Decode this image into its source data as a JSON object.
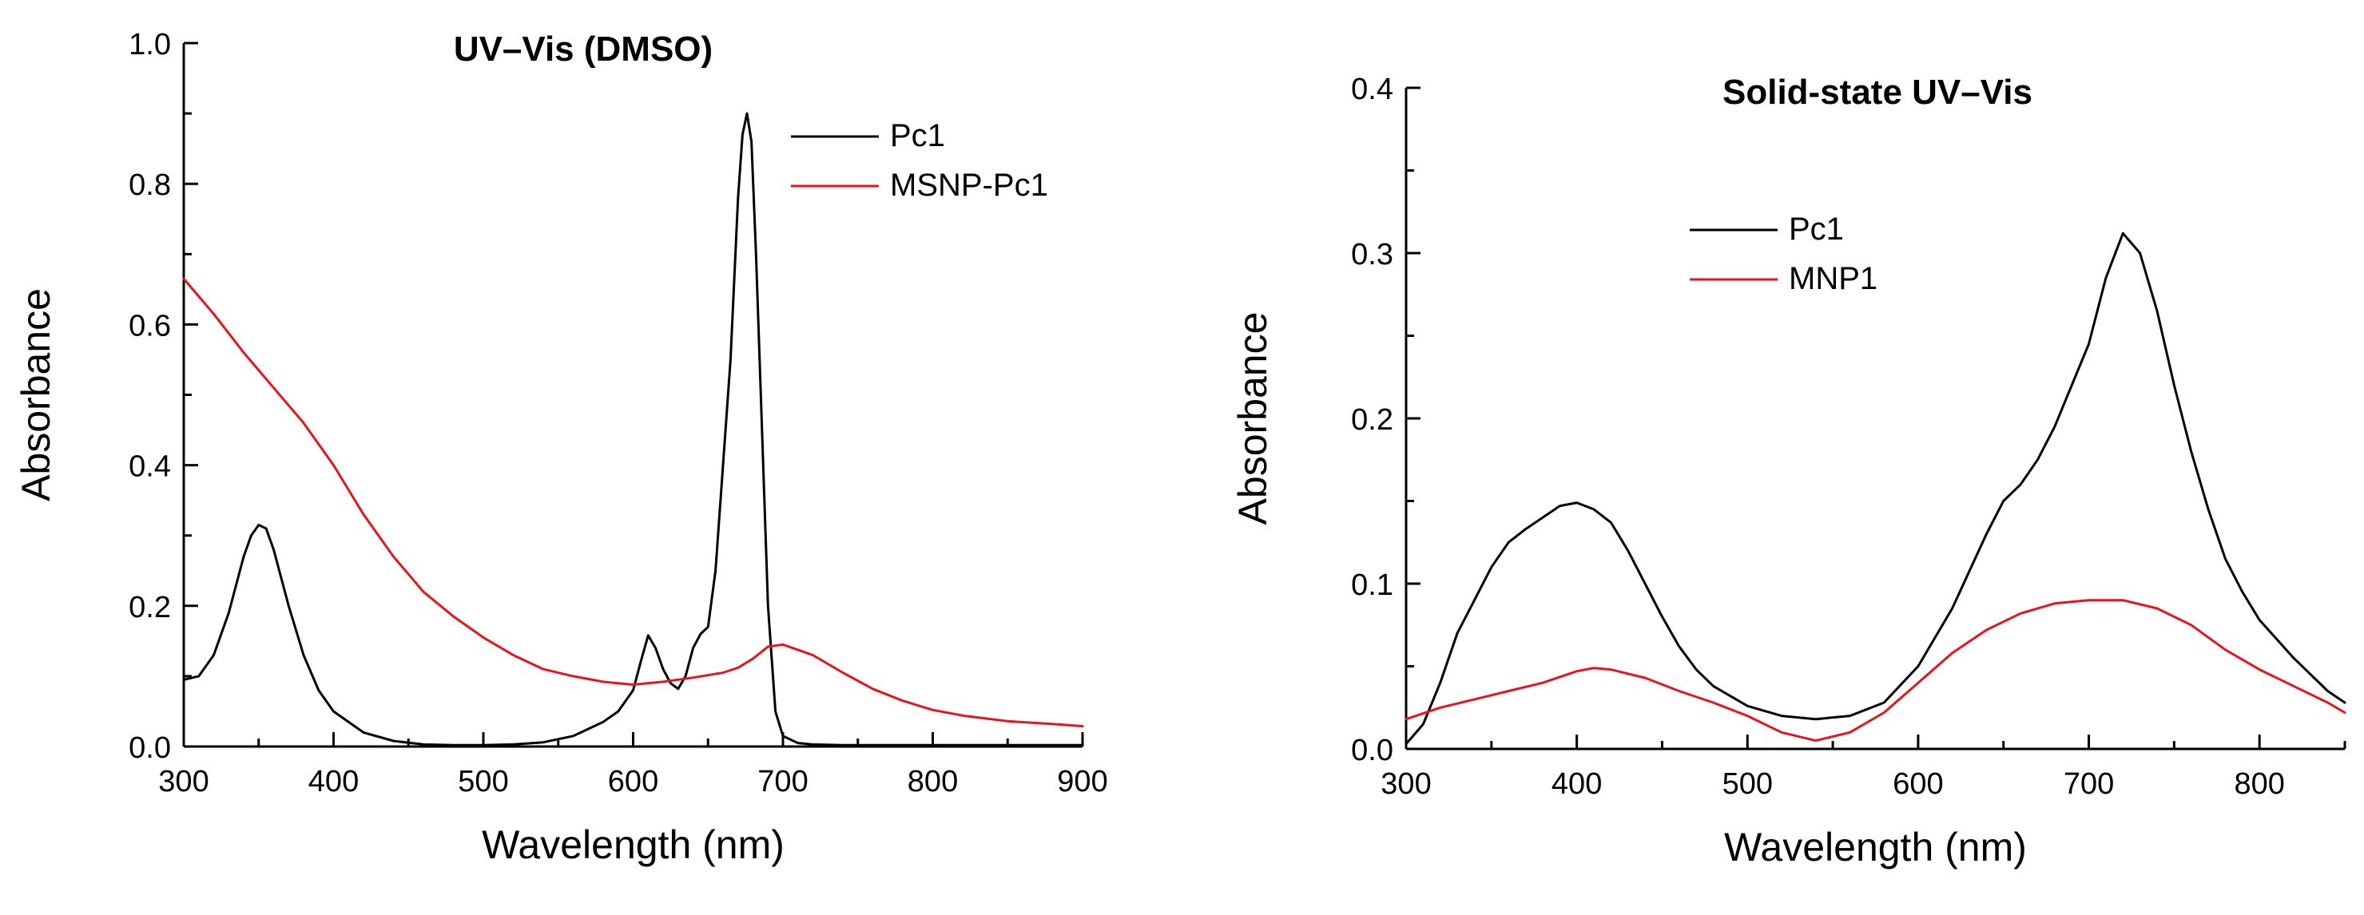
{
  "chart_data": [
    {
      "type": "line",
      "title": "UV–Vis (DMSO)",
      "xlabel": "Wavelength (nm)",
      "ylabel": "Absorbance",
      "xlim": [
        300,
        900
      ],
      "ylim": [
        0.0,
        1.0
      ],
      "xticks": [
        "300",
        "400",
        "500",
        "600",
        "700",
        "800",
        "900"
      ],
      "yticks": [
        "0.0",
        "0.2",
        "0.4",
        "0.6",
        "0.8",
        "1.0"
      ],
      "legend_position": "top-right",
      "series": [
        {
          "name": "Pc1",
          "color": "#000000",
          "x": [
            300,
            310,
            320,
            330,
            340,
            345,
            350,
            355,
            360,
            370,
            380,
            390,
            400,
            420,
            440,
            460,
            480,
            500,
            520,
            540,
            560,
            570,
            580,
            590,
            600,
            605,
            610,
            615,
            620,
            625,
            630,
            635,
            640,
            645,
            650,
            655,
            660,
            665,
            670,
            673,
            676,
            679,
            682,
            686,
            690,
            695,
            700,
            710,
            720,
            740,
            760,
            780,
            800,
            850,
            900
          ],
          "y": [
            0.095,
            0.1,
            0.13,
            0.19,
            0.27,
            0.3,
            0.315,
            0.31,
            0.28,
            0.2,
            0.13,
            0.08,
            0.05,
            0.02,
            0.008,
            0.003,
            0.002,
            0.002,
            0.003,
            0.006,
            0.015,
            0.025,
            0.035,
            0.05,
            0.08,
            0.12,
            0.158,
            0.14,
            0.11,
            0.09,
            0.082,
            0.1,
            0.14,
            0.16,
            0.17,
            0.25,
            0.4,
            0.55,
            0.78,
            0.87,
            0.9,
            0.86,
            0.7,
            0.45,
            0.2,
            0.05,
            0.015,
            0.005,
            0.003,
            0.002,
            0.002,
            0.002,
            0.002,
            0.002,
            0.002
          ]
        },
        {
          "name": "MSNP-Pc1",
          "color": "#e8141c",
          "x": [
            300,
            320,
            340,
            360,
            380,
            400,
            420,
            440,
            460,
            480,
            500,
            520,
            540,
            560,
            580,
            600,
            620,
            640,
            660,
            670,
            680,
            690,
            700,
            720,
            740,
            760,
            780,
            800,
            820,
            850,
            880,
            900
          ],
          "y": [
            0.665,
            0.615,
            0.56,
            0.51,
            0.46,
            0.4,
            0.33,
            0.27,
            0.22,
            0.185,
            0.155,
            0.13,
            0.11,
            0.1,
            0.092,
            0.088,
            0.092,
            0.098,
            0.105,
            0.112,
            0.125,
            0.142,
            0.145,
            0.13,
            0.105,
            0.082,
            0.065,
            0.052,
            0.044,
            0.036,
            0.032,
            0.029
          ]
        }
      ]
    },
    {
      "type": "line",
      "title": "Solid-state UV–Vis",
      "xlabel": "Wavelength (nm)",
      "ylabel": "Absorbance",
      "xlim": [
        300,
        850
      ],
      "ylim": [
        0.0,
        0.4
      ],
      "xticks": [
        "300",
        "400",
        "500",
        "600",
        "700",
        "800"
      ],
      "yticks": [
        "0.0",
        "0.1",
        "0.2",
        "0.3",
        "0.4"
      ],
      "legend_position": "top-center",
      "series": [
        {
          "name": "Pc1",
          "color": "#000000",
          "x": [
            300,
            310,
            320,
            330,
            340,
            350,
            360,
            370,
            380,
            390,
            400,
            410,
            420,
            430,
            440,
            450,
            460,
            470,
            480,
            500,
            520,
            540,
            560,
            580,
            600,
            620,
            640,
            650,
            660,
            670,
            680,
            690,
            700,
            710,
            720,
            730,
            740,
            750,
            760,
            770,
            780,
            790,
            800,
            820,
            840,
            850
          ],
          "y": [
            0.003,
            0.015,
            0.04,
            0.07,
            0.09,
            0.11,
            0.125,
            0.133,
            0.14,
            0.147,
            0.149,
            0.145,
            0.137,
            0.12,
            0.1,
            0.08,
            0.062,
            0.048,
            0.038,
            0.026,
            0.02,
            0.018,
            0.02,
            0.028,
            0.05,
            0.085,
            0.13,
            0.15,
            0.16,
            0.175,
            0.195,
            0.22,
            0.245,
            0.285,
            0.312,
            0.3,
            0.265,
            0.22,
            0.18,
            0.145,
            0.115,
            0.095,
            0.078,
            0.055,
            0.035,
            0.028
          ]
        },
        {
          "name": "MNP1",
          "color": "#e8141c",
          "x": [
            300,
            320,
            340,
            360,
            380,
            400,
            410,
            420,
            440,
            460,
            480,
            500,
            520,
            540,
            560,
            580,
            600,
            620,
            640,
            660,
            680,
            700,
            720,
            740,
            760,
            780,
            800,
            820,
            840,
            850
          ],
          "y": [
            0.018,
            0.025,
            0.03,
            0.035,
            0.04,
            0.047,
            0.049,
            0.048,
            0.043,
            0.035,
            0.028,
            0.02,
            0.01,
            0.005,
            0.01,
            0.022,
            0.04,
            0.058,
            0.072,
            0.082,
            0.088,
            0.09,
            0.09,
            0.085,
            0.075,
            0.06,
            0.048,
            0.038,
            0.028,
            0.022
          ]
        }
      ]
    }
  ]
}
